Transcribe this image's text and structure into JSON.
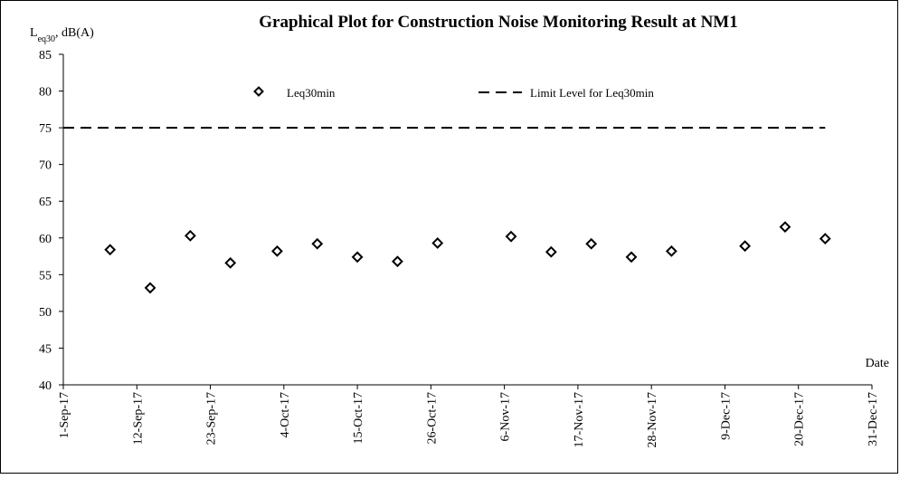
{
  "chart_data": {
    "type": "scatter",
    "title": "Graphical Plot for Construction Noise Monitoring Result at NM1",
    "ylabel": {
      "main": "L",
      "sub": "eq30",
      "unit": ", dB(A)"
    },
    "xlabel": "Date",
    "ylim": [
      40,
      85
    ],
    "yticks": [
      40,
      45,
      50,
      55,
      60,
      65,
      70,
      75,
      80,
      85
    ],
    "xlim": [
      "2017-09-01",
      "2017-12-31"
    ],
    "xticks": [
      {
        "date": "2017-09-01",
        "label": "1-Sep-17"
      },
      {
        "date": "2017-09-12",
        "label": "12-Sep-17"
      },
      {
        "date": "2017-09-23",
        "label": "23-Sep-17"
      },
      {
        "date": "2017-10-04",
        "label": "4-Oct-17"
      },
      {
        "date": "2017-10-15",
        "label": "15-Oct-17"
      },
      {
        "date": "2017-10-26",
        "label": "26-Oct-17"
      },
      {
        "date": "2017-11-06",
        "label": "6-Nov-17"
      },
      {
        "date": "2017-11-17",
        "label": "17-Nov-17"
      },
      {
        "date": "2017-11-28",
        "label": "28-Nov-17"
      },
      {
        "date": "2017-12-09",
        "label": "9-Dec-17"
      },
      {
        "date": "2017-12-20",
        "label": "20-Dec-17"
      },
      {
        "date": "2017-12-31",
        "label": "31-Dec-17"
      }
    ],
    "grid": false,
    "legend_position": "top",
    "series": [
      {
        "name": "Leq30min",
        "marker": "diamond",
        "color": "#000000",
        "points": [
          {
            "x": "2017-09-08",
            "y": 58.4
          },
          {
            "x": "2017-09-14",
            "y": 53.2
          },
          {
            "x": "2017-09-20",
            "y": 60.3
          },
          {
            "x": "2017-09-26",
            "y": 56.6
          },
          {
            "x": "2017-10-03",
            "y": 58.2
          },
          {
            "x": "2017-10-09",
            "y": 59.2
          },
          {
            "x": "2017-10-15",
            "y": 57.4
          },
          {
            "x": "2017-10-21",
            "y": 56.8
          },
          {
            "x": "2017-10-27",
            "y": 59.3
          },
          {
            "x": "2017-11-07",
            "y": 60.2
          },
          {
            "x": "2017-11-13",
            "y": 58.1
          },
          {
            "x": "2017-11-19",
            "y": 59.2
          },
          {
            "x": "2017-11-25",
            "y": 57.4
          },
          {
            "x": "2017-12-01",
            "y": 58.2
          },
          {
            "x": "2017-12-12",
            "y": 58.9
          },
          {
            "x": "2017-12-18",
            "y": 61.5
          },
          {
            "x": "2017-12-24",
            "y": 59.9
          }
        ]
      }
    ],
    "limit_line": {
      "name": "Limit Level for Leq30min",
      "style": "dashed",
      "color": "#000000",
      "y": 75,
      "x_start": "2017-09-01",
      "x_end": "2017-12-24"
    }
  }
}
